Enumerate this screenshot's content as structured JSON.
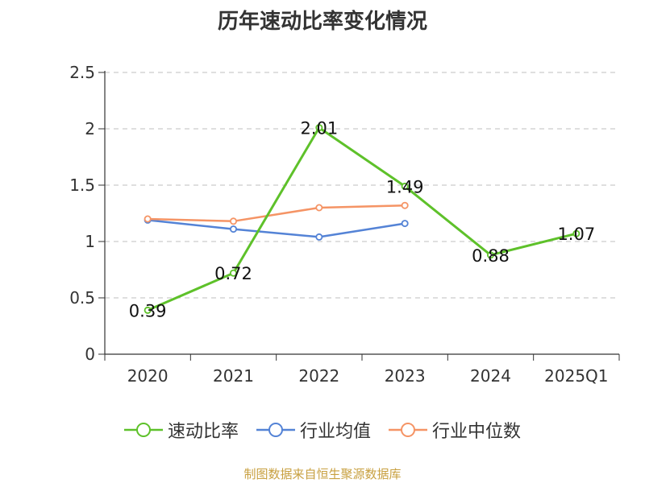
{
  "chart_data": {
    "type": "line",
    "title": "历年速动比率变化情况",
    "categories": [
      "2020",
      "2021",
      "2022",
      "2023",
      "2024",
      "2025Q1"
    ],
    "ylim": [
      0,
      2.5
    ],
    "yticks": [
      "0",
      "0.5",
      "1",
      "1.5",
      "2",
      "2.5"
    ],
    "grid": true,
    "legend_position": "bottom",
    "series": [
      {
        "name": "速动比率",
        "color": "#5ec12a",
        "values": [
          0.39,
          0.72,
          2.01,
          1.49,
          0.88,
          1.07
        ],
        "labels": [
          "0.39",
          "0.72",
          "2.01",
          "1.49",
          "0.88",
          "1.07"
        ]
      },
      {
        "name": "行业均值",
        "color": "#5483d6",
        "values": [
          1.19,
          1.11,
          1.04,
          1.16,
          null,
          null
        ]
      },
      {
        "name": "行业中位数",
        "color": "#f59465",
        "values": [
          1.2,
          1.18,
          1.3,
          1.32,
          null,
          null
        ]
      }
    ]
  },
  "source": "制图数据来自恒生聚源数据库"
}
